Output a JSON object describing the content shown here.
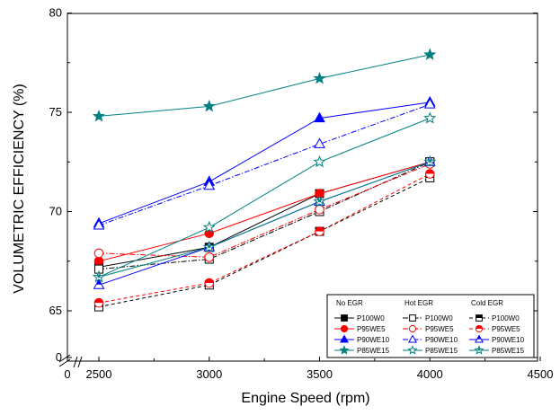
{
  "chart_data": {
    "type": "line",
    "xlabel": "Engine Speed (rpm)",
    "ylabel": "VOLUMETRIC EFFICIENCY (%)",
    "x_ticks": [
      0,
      2500,
      3000,
      3500,
      4000,
      4500
    ],
    "x_tick_labels": [
      "0",
      "2500",
      "3000",
      "3500",
      "4000",
      "4500"
    ],
    "y_ticks": [
      0,
      65,
      70,
      75,
      80
    ],
    "y_tick_labels": [
      "0",
      "65",
      "70",
      "75",
      "80"
    ],
    "xlim_shown": [
      2370,
      4500
    ],
    "ylim_shown": [
      63.8,
      80
    ],
    "axis_break": "0 on both axes, shown with break marks at the lower-left corner",
    "grid": false,
    "legend_position": "bottom-right",
    "legend_groups": [
      "No EGR",
      "Hot EGR",
      "Cold EGR"
    ],
    "x": [
      2500,
      3000,
      3500,
      4000
    ],
    "series": [
      {
        "name": "P100W0",
        "group": "No EGR",
        "color": "#000000",
        "marker": "square",
        "filled": true,
        "dash": "solid",
        "values": [
          67.2,
          68.2,
          70.9,
          72.5
        ]
      },
      {
        "name": "P95WE5",
        "group": "No EGR",
        "color": "#ff0000",
        "marker": "circle",
        "filled": true,
        "dash": "solid",
        "values": [
          67.5,
          68.9,
          70.9,
          72.5
        ]
      },
      {
        "name": "P90WE10",
        "group": "No EGR",
        "color": "#0000ff",
        "marker": "triangle",
        "filled": true,
        "dash": "solid",
        "values": [
          69.4,
          71.5,
          74.7,
          75.5
        ]
      },
      {
        "name": "P85WE15",
        "group": "No EGR",
        "color": "#008080",
        "marker": "star",
        "filled": true,
        "dash": "solid",
        "values": [
          74.8,
          75.3,
          76.7,
          77.9
        ]
      },
      {
        "name": "P100W0",
        "group": "Hot EGR",
        "color": "#000000",
        "marker": "square",
        "filled": false,
        "dash": "dashdot",
        "values": [
          67.1,
          67.6,
          70.0,
          72.5
        ]
      },
      {
        "name": "P95WE5",
        "group": "Hot EGR",
        "color": "#ff0000",
        "marker": "circle",
        "filled": false,
        "dash": "dashdot",
        "values": [
          67.9,
          67.7,
          70.1,
          72.4
        ]
      },
      {
        "name": "P90WE10",
        "group": "Hot EGR",
        "color": "#0000ff",
        "marker": "triangle",
        "filled": false,
        "dash": "dashdot",
        "values": [
          69.3,
          71.3,
          73.4,
          75.4
        ]
      },
      {
        "name": "P85WE15",
        "group": "Hot EGR",
        "color": "#008080",
        "marker": "star",
        "filled": false,
        "dash": "solid",
        "values": [
          66.7,
          69.2,
          72.5,
          74.7
        ]
      },
      {
        "name": "P100W0",
        "group": "Cold EGR",
        "color": "#000000",
        "marker": "square",
        "filled": "half",
        "dash": "dash",
        "values": [
          65.2,
          66.3,
          69.0,
          71.7
        ]
      },
      {
        "name": "P95WE5",
        "group": "Cold EGR",
        "color": "#ff0000",
        "marker": "circle",
        "filled": "half",
        "dash": "dash",
        "values": [
          65.4,
          66.4,
          69.0,
          71.9
        ]
      },
      {
        "name": "P90WE10",
        "group": "Cold EGR",
        "color": "#0000ff",
        "marker": "triangle",
        "filled": "half",
        "dash": "solid",
        "values": [
          66.3,
          68.2,
          70.5,
          72.5
        ]
      },
      {
        "name": "P85WE15",
        "group": "Cold EGR",
        "color": "#008080",
        "marker": "star",
        "filled": "half",
        "dash": "solid",
        "values": [
          66.7,
          68.2,
          70.5,
          72.5
        ]
      }
    ]
  }
}
